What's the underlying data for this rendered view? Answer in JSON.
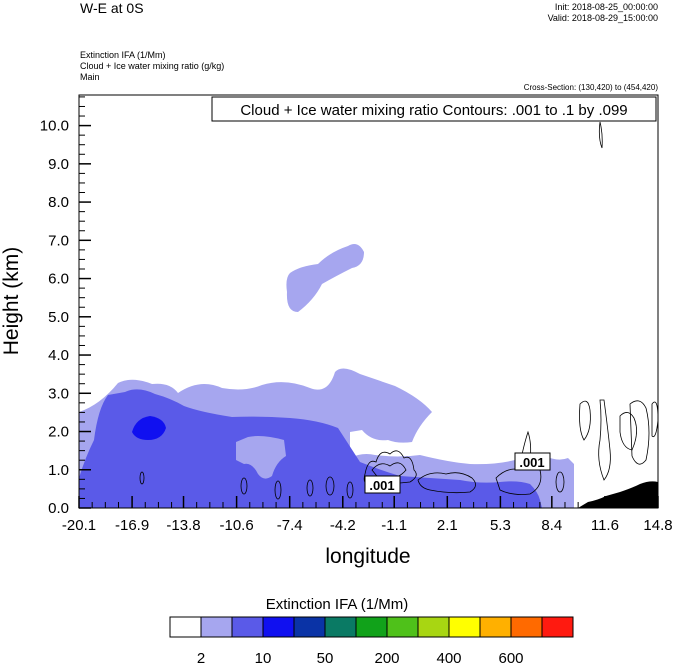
{
  "header": {
    "title": "W-E at 0S",
    "init": "Init: 2018-08-25_00:00:00",
    "valid": "Valid: 2018-08-29_15:00:00",
    "line1": "Extinction IFA   (1/Mm)",
    "line2": "Cloud + Ice water mixing ratio   (g/kg)",
    "line3": "Main",
    "cross_section": "Cross-Section: (130,420) to (454,420)"
  },
  "chart_data": {
    "type": "contour",
    "xlabel": "longitude",
    "ylabel": "Height (km)",
    "xlim": [
      -20.1,
      14.8
    ],
    "ylim": [
      0.0,
      10.8
    ],
    "xticks": [
      "-20.1",
      "-16.9",
      "-13.8",
      "-10.6",
      "-7.4",
      "-4.2",
      "-1.1",
      "2.1",
      "5.3",
      "8.4",
      "11.6",
      "14.8"
    ],
    "yticks": [
      "0.0",
      "1.0",
      "2.0",
      "3.0",
      "4.0",
      "5.0",
      "6.0",
      "7.0",
      "8.0",
      "9.0",
      "10.0"
    ],
    "contour_legend": "Cloud + Ice water mixing ratio Contours: .001 to .1 by .099",
    "contour_labels": [
      ".001",
      ".001"
    ],
    "colorbar": {
      "label": "Extinction IFA  (1/Mm)",
      "colors": [
        "#ffffff",
        "#a6a6ef",
        "#5a5ae8",
        "#1010f0",
        "#0a33a6",
        "#0a7a64",
        "#11a21a",
        "#4fc11a",
        "#a8d612",
        "#ffff00",
        "#ffb000",
        "#ff6a00",
        "#ff1a10"
      ],
      "tick_labels": [
        "2",
        "10",
        "50",
        "200",
        "400",
        "600"
      ]
    }
  }
}
